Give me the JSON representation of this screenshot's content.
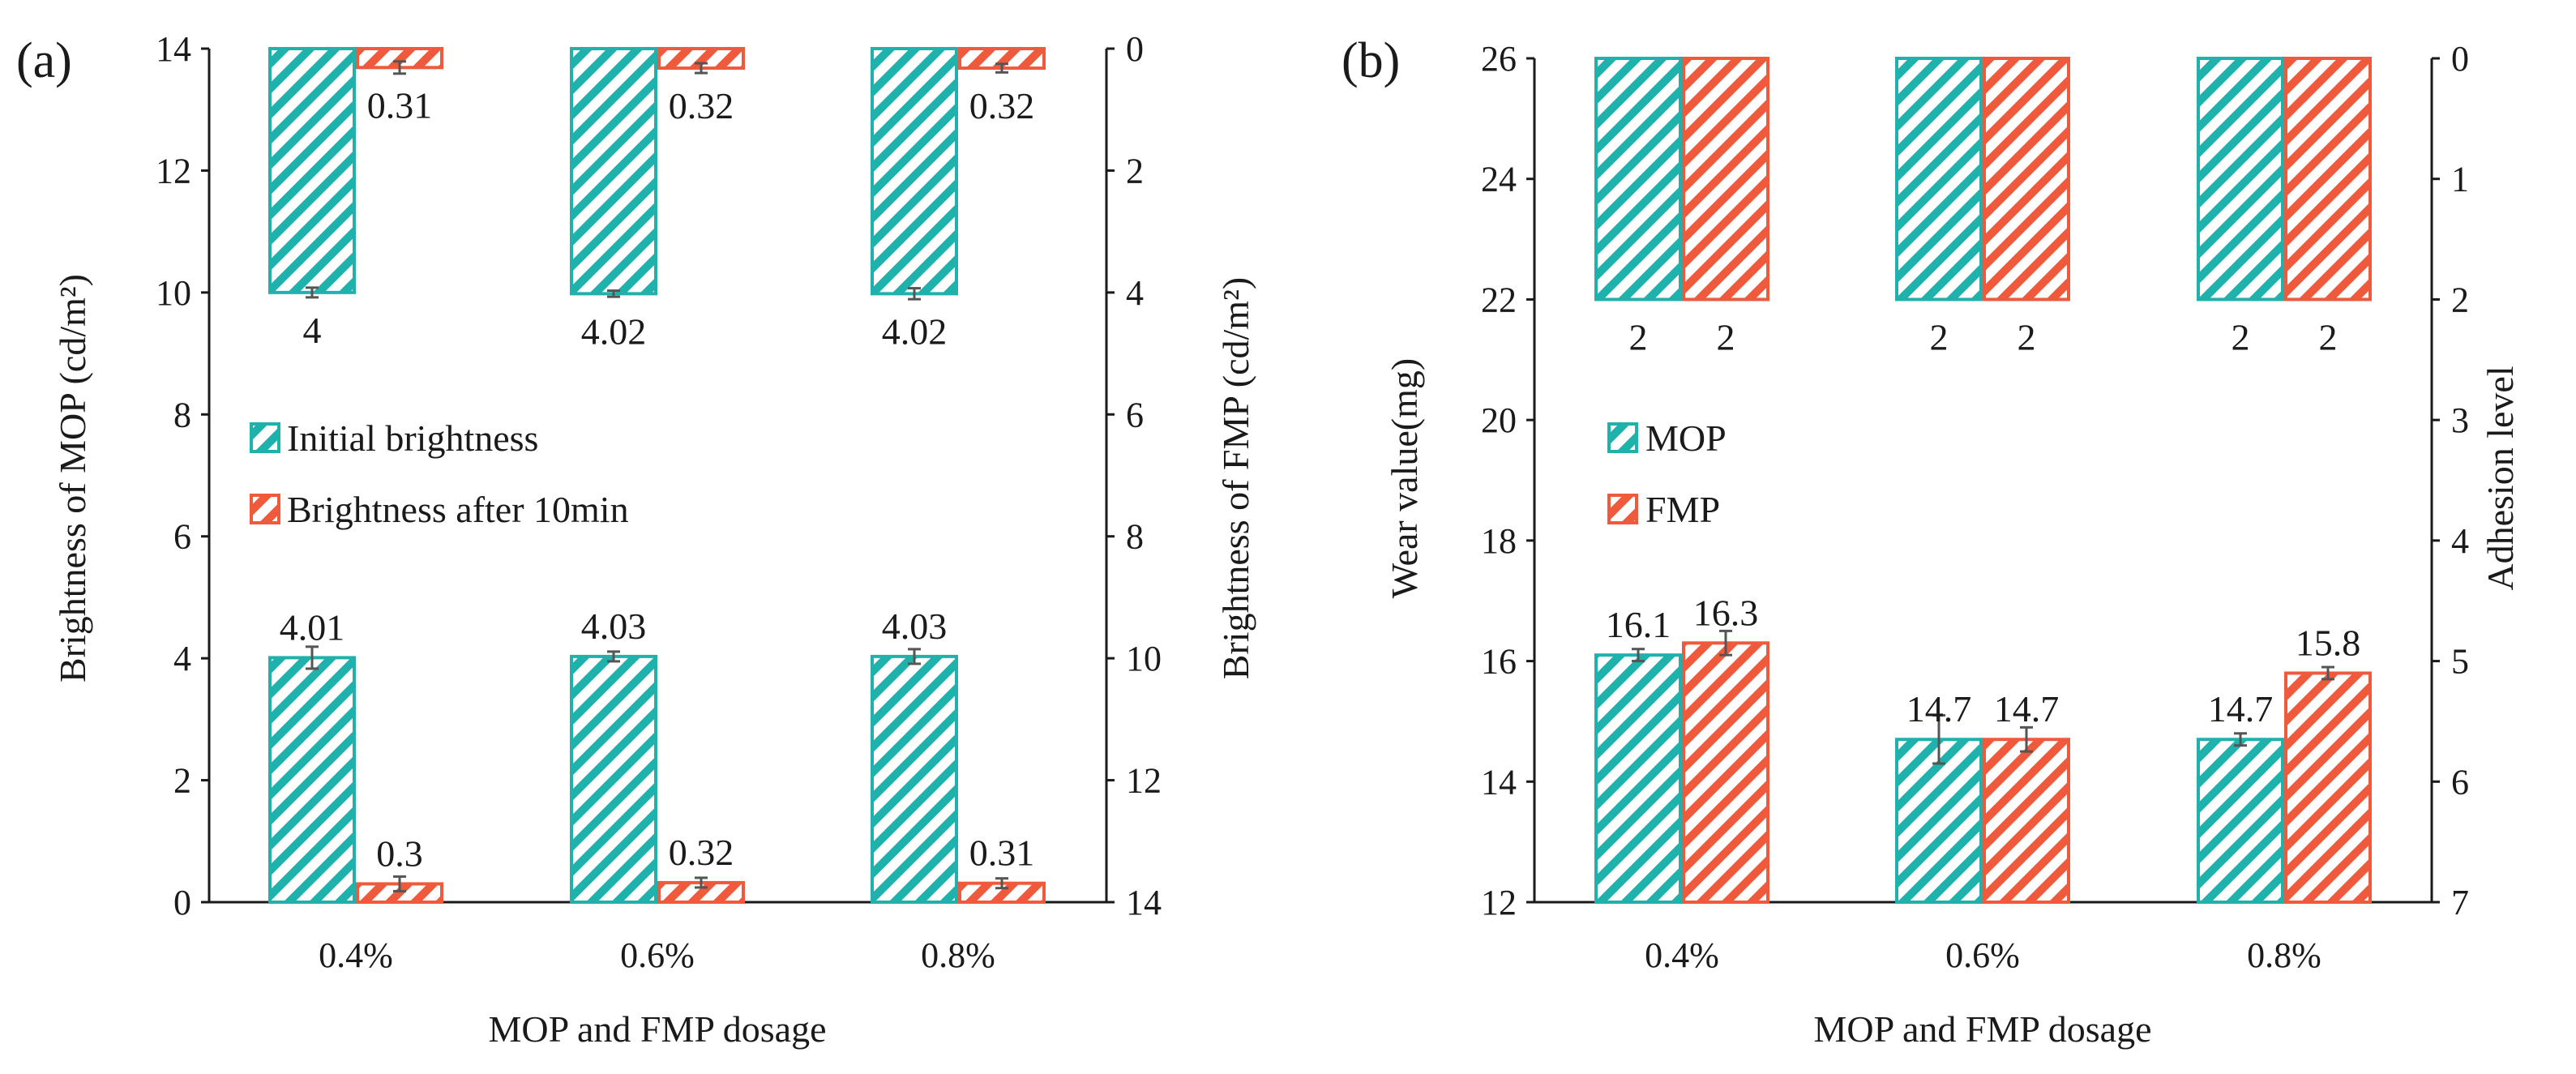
{
  "colors": {
    "mop": "#1fb2ac",
    "fmp": "#f05a3c",
    "axis": "#1a1a1a",
    "err": "#555555"
  },
  "chart_data": [
    {
      "panel_label": "(a)",
      "type": "bar",
      "pattern": "diagonal-hatch",
      "categories": [
        "0.4%",
        "0.6%",
        "0.8%"
      ],
      "xlabel": "MOP and FMP dosage",
      "ylabel_left": "Brightness of MOP (cd/m²)",
      "ylabel_right": "Brightness of FMP (cd/m²)",
      "ylim_left": [
        0,
        14
      ],
      "ylim_right_inverted": [
        0,
        14
      ],
      "yticks_left": [
        "0",
        "2",
        "4",
        "6",
        "8",
        "10",
        "12",
        "14"
      ],
      "yticks_right": [
        "0",
        "2",
        "4",
        "6",
        "8",
        "10",
        "12",
        "14"
      ],
      "legend": [
        "Initial brightness",
        "Brightness after 10min"
      ],
      "series": [
        {
          "name": "Initial brightness (MOP)",
          "axis": "left",
          "color": "mop",
          "values": [
            4.01,
            4.03,
            4.03
          ],
          "errors": [
            0.18,
            0.08,
            0.12
          ],
          "labels": [
            "4.01",
            "4.03",
            "4.03"
          ]
        },
        {
          "name": "Brightness after 10min (MOP)",
          "axis": "left",
          "color": "fmp",
          "values": [
            0.3,
            0.32,
            0.31
          ],
          "errors": [
            0.12,
            0.08,
            0.08
          ],
          "labels": [
            "0.3",
            "0.32",
            "0.31"
          ]
        },
        {
          "name": "Initial brightness (FMP)",
          "axis": "right",
          "color": "mop",
          "values": [
            4,
            4.02,
            4.02
          ],
          "errors": [
            0.08,
            0.05,
            0.09
          ],
          "labels": [
            "4",
            "4.02",
            "4.02"
          ]
        },
        {
          "name": "Brightness after 10min (FMP)",
          "axis": "right",
          "color": "fmp",
          "values": [
            0.31,
            0.32,
            0.32
          ],
          "errors": [
            0.1,
            0.08,
            0.07
          ],
          "labels": [
            "0.31",
            "0.32",
            "0.32"
          ]
        }
      ]
    },
    {
      "panel_label": "(b)",
      "type": "bar",
      "pattern": "diagonal-hatch",
      "categories": [
        "0.4%",
        "0.6%",
        "0.8%"
      ],
      "xlabel": "MOP and FMP dosage",
      "ylabel_left": "Wear value(mg)",
      "ylabel_right": "Adhesion level",
      "ylim_left": [
        12,
        26
      ],
      "ylim_right_inverted": [
        0,
        7
      ],
      "yticks_left": [
        "12",
        "14",
        "16",
        "18",
        "20",
        "22",
        "24",
        "26"
      ],
      "yticks_right": [
        "0",
        "1",
        "2",
        "3",
        "4",
        "5",
        "6",
        "7"
      ],
      "legend": [
        "MOP",
        "FMP"
      ],
      "series": [
        {
          "name": "Wear value MOP",
          "axis": "left",
          "color": "mop",
          "values": [
            16.1,
            14.7,
            14.7
          ],
          "errors": [
            0.1,
            0.4,
            0.1
          ],
          "labels": [
            "16.1",
            "14.7",
            "14.7"
          ]
        },
        {
          "name": "Wear value FMP",
          "axis": "left",
          "color": "fmp",
          "values": [
            16.3,
            14.7,
            15.8
          ],
          "errors": [
            0.2,
            0.2,
            0.1
          ],
          "labels": [
            "16.3",
            "14.7",
            "15.8"
          ]
        },
        {
          "name": "Adhesion level MOP",
          "axis": "right",
          "color": "mop",
          "values": [
            2,
            2,
            2
          ],
          "errors": [
            0,
            0,
            0
          ],
          "labels": [
            "2",
            "2",
            "2"
          ]
        },
        {
          "name": "Adhesion level FMP",
          "axis": "right",
          "color": "fmp",
          "values": [
            2,
            2,
            2
          ],
          "errors": [
            0,
            0,
            0
          ],
          "labels": [
            "2",
            "2",
            "2"
          ]
        }
      ]
    }
  ]
}
